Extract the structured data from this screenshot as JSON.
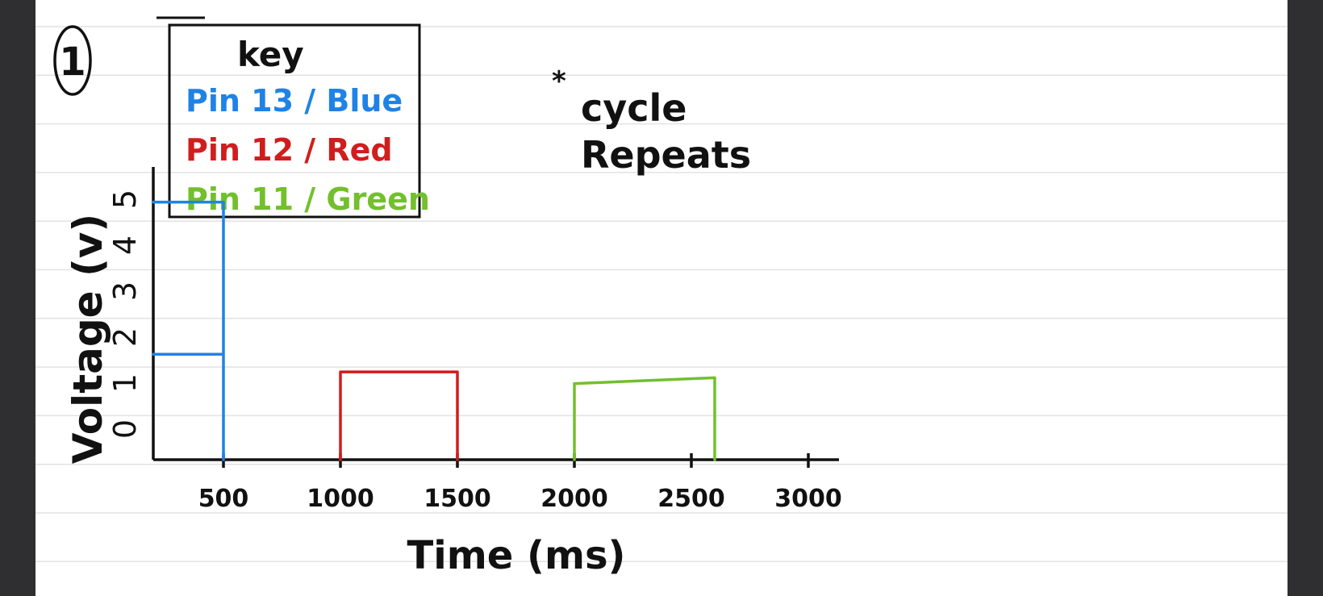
{
  "page": {
    "figure_number": "1",
    "note_line1": "cycle",
    "note_line2": "Repeats"
  },
  "colors": {
    "background": "#2f2f31",
    "paper": "#ffffff",
    "rule_line": "#e2e2e2",
    "ink": "#111111",
    "blue": "#1f82e6",
    "red": "#d11d1d",
    "green": "#72c02c"
  },
  "chart_data": {
    "type": "line",
    "title": "",
    "xlabel": "Time (ms)",
    "ylabel": "Voltage (v)",
    "x_ticks": [
      "500",
      "1000",
      "1500",
      "2000",
      "2500",
      "3000"
    ],
    "x_tick_values": [
      500,
      1000,
      1500,
      2000,
      2500,
      3000
    ],
    "y_ticks": [
      "0",
      "1",
      "2",
      "3",
      "4",
      "5"
    ],
    "y_tick_values": [
      0,
      1,
      2,
      3,
      4,
      5
    ],
    "xlim": [
      200,
      3200
    ],
    "ylim": [
      0,
      5
    ],
    "legend_title": "key",
    "legend_position": "top-left",
    "series": [
      {
        "name": "Pin 13 / Blue",
        "color": "#1f82e6",
        "x": [
          200,
          500,
          500,
          200,
          500,
          500
        ],
        "y": [
          4.4,
          4.4,
          1.8,
          1.8,
          1.8,
          0
        ]
      },
      {
        "name": "Pin 12 / Red",
        "color": "#d11d1d",
        "x": [
          1000,
          1000,
          1500,
          1500
        ],
        "y": [
          0,
          1.5,
          1.5,
          0
        ]
      },
      {
        "name": "Pin 11 / Green",
        "color": "#72c02c",
        "x": [
          2000,
          2000,
          2600,
          2600
        ],
        "y": [
          0,
          1.3,
          1.4,
          0
        ]
      }
    ]
  }
}
